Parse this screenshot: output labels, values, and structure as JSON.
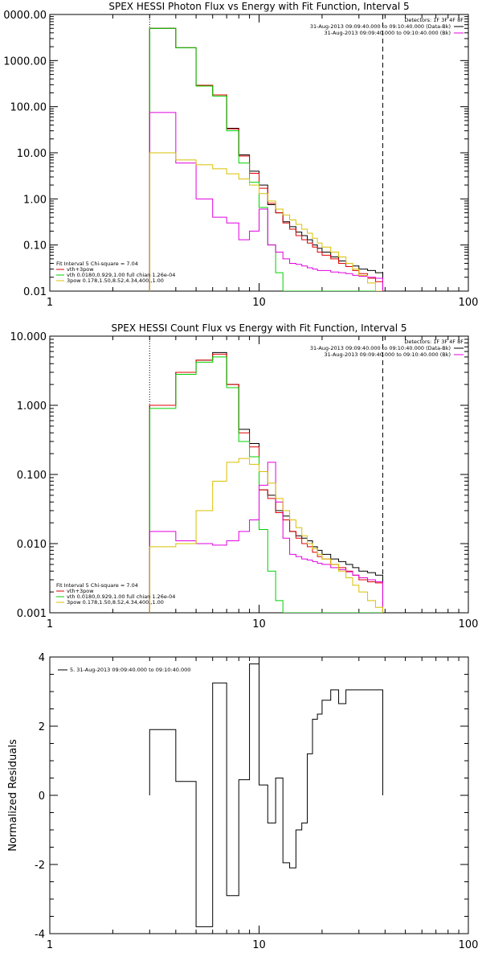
{
  "chart_data": [
    {
      "type": "line",
      "title": "SPEX HESSI Photon Flux vs Energy with Fit Function, Interval 5",
      "x_scale": "log",
      "y_scale": "log",
      "xlim": [
        1,
        100
      ],
      "ylim": [
        0.01,
        10000
      ],
      "x_ticks": [
        "1",
        "10",
        "100"
      ],
      "y_ticks": [
        "0.01",
        "0.10",
        "1.00",
        "10.00",
        "100.00",
        "1000.00",
        "0000.00"
      ],
      "x_edges": [
        3,
        4,
        5,
        6,
        7,
        8,
        9,
        10,
        11,
        12,
        13,
        14,
        15,
        16,
        17,
        18,
        19,
        20,
        22,
        24,
        26,
        28,
        30,
        33,
        36,
        39
      ],
      "vlines": [
        3,
        39
      ],
      "legend_top": {
        "header": "Detectors: 1F 3F 4F 8F",
        "entries": [
          {
            "label": "31-Aug-2013 09:09:40.000 to 09:10:40.000 (Data-Bk)",
            "color": "#000000"
          },
          {
            "label": "31-Aug-2013 09:09:40.000 to 09:10:40.000 (Bk)",
            "color": "#e000e0"
          }
        ]
      },
      "legend_bottom": {
        "header": "Fit Interval 5   Chi-square = 7.04",
        "entries": [
          {
            "label": "vth+3pow",
            "color": "#e00000"
          },
          {
            "label": "vth 0.0180,0.929,1.00  full chian 1.26e-04",
            "color": "#00d000"
          },
          {
            "label": "3pow 0.178,1.50,8.52,4.34,400.,1.00",
            "color": "#d8c000"
          }
        ]
      },
      "series": [
        {
          "color": "#000000",
          "values": [
            5000,
            1900,
            290,
            180,
            34,
            9,
            4,
            2,
            0.75,
            0.5,
            0.32,
            0.25,
            0.19,
            0.16,
            0.13,
            0.1,
            0.085,
            0.07,
            0.055,
            0.045,
            0.04,
            0.035,
            0.03,
            0.028,
            0.025
          ]
        },
        {
          "color": "#e00000",
          "values": [
            5000,
            1900,
            290,
            180,
            33,
            8.5,
            3.6,
            1.7,
            0.8,
            0.5,
            0.3,
            0.22,
            0.16,
            0.13,
            0.11,
            0.09,
            0.07,
            0.06,
            0.05,
            0.04,
            0.034,
            0.028,
            0.024,
            0.019,
            0.016
          ]
        },
        {
          "color": "#00d000",
          "values": [
            5000,
            1900,
            280,
            170,
            30,
            6,
            2.3,
            0.65,
            0.1,
            0.025,
            0.01,
            0.01,
            0.01,
            0.01,
            0.01,
            0.01,
            0.01,
            0.01,
            0.01,
            0.01,
            0.01,
            0.01,
            0.01,
            0.01,
            0.01
          ]
        },
        {
          "color": "#e000e0",
          "values": [
            75,
            6,
            1,
            0.4,
            0.3,
            0.13,
            0.2,
            0.6,
            0.1,
            0.07,
            0.05,
            0.04,
            0.038,
            0.035,
            0.032,
            0.03,
            0.028,
            0.028,
            0.026,
            0.025,
            0.024,
            0.022,
            0.021,
            0.02,
            0.019
          ]
        },
        {
          "color": "#d8c000",
          "values": [
            10,
            7,
            5.5,
            4.5,
            3.5,
            2.7,
            2,
            1.3,
            0.9,
            0.6,
            0.45,
            0.35,
            0.28,
            0.22,
            0.18,
            0.14,
            0.11,
            0.09,
            0.07,
            0.055,
            0.04,
            0.03,
            0.022,
            0.015,
            0.01
          ]
        }
      ]
    },
    {
      "type": "line",
      "title": "SPEX HESSI Count Flux vs Energy with Fit Function, Interval 5",
      "x_scale": "log",
      "y_scale": "log",
      "xlim": [
        1,
        100
      ],
      "ylim": [
        0.001,
        10
      ],
      "x_ticks": [
        "1",
        "10",
        "100"
      ],
      "y_ticks": [
        "0.001",
        "0.010",
        "0.100",
        "1.000",
        "10.000"
      ],
      "x_edges": [
        3,
        4,
        5,
        6,
        7,
        8,
        9,
        10,
        11,
        12,
        13,
        14,
        15,
        16,
        17,
        18,
        19,
        20,
        22,
        24,
        26,
        28,
        30,
        33,
        36,
        39
      ],
      "vlines": [
        3,
        39
      ],
      "legend_top": {
        "header": "Detectors: 1F 3F 4F 8F",
        "entries": [
          {
            "label": "31-Aug-2013 09:09:40.000 to 09:10:40.000 (Data-Bk)",
            "color": "#000000"
          },
          {
            "label": "31-Aug-2013 09:09:40.000 to 09:10:40.000 (Bk)",
            "color": "#e000e0"
          }
        ]
      },
      "legend_bottom": {
        "header": "Fit Interval 5   Chi-square = 7.04",
        "entries": [
          {
            "label": "vth+3pow",
            "color": "#e00000"
          },
          {
            "label": "vth 0.0180,0.929,1.00  full chian 1.26e-04",
            "color": "#00d000"
          },
          {
            "label": "3pow 0.178,1.50,8.52,4.34,400.,1.00",
            "color": "#d8c000"
          }
        ]
      },
      "series": [
        {
          "color": "#000000",
          "values": [
            1,
            3,
            4.5,
            5.8,
            2,
            0.45,
            0.28,
            0.06,
            0.05,
            0.03,
            0.025,
            0.015,
            0.013,
            0.012,
            0.011,
            0.009,
            0.008,
            0.007,
            0.006,
            0.0055,
            0.005,
            0.0045,
            0.004,
            0.0038,
            0.0035
          ]
        },
        {
          "color": "#e00000",
          "values": [
            1,
            3,
            4.5,
            5.5,
            2,
            0.4,
            0.25,
            0.06,
            0.045,
            0.028,
            0.022,
            0.015,
            0.012,
            0.01,
            0.009,
            0.0075,
            0.0065,
            0.006,
            0.005,
            0.0045,
            0.004,
            0.0035,
            0.003,
            0.0028,
            0.0027
          ]
        },
        {
          "color": "#00d000",
          "values": [
            0.9,
            2.8,
            4.2,
            5,
            1.8,
            0.3,
            0.18,
            0.016,
            0.004,
            0.0015,
            0.001,
            0.001,
            0.001,
            0.001,
            0.001,
            0.001,
            0.001,
            0.001,
            0.001,
            0.001,
            0.001,
            0.001,
            0.001,
            0.001,
            0.001
          ]
        },
        {
          "color": "#e000e0",
          "values": [
            0.015,
            0.011,
            0.01,
            0.0095,
            0.011,
            0.015,
            0.022,
            0.07,
            0.15,
            0.04,
            0.012,
            0.007,
            0.0065,
            0.006,
            0.0058,
            0.0055,
            0.0052,
            0.005,
            0.0045,
            0.0042,
            0.0039,
            0.0035,
            0.0032,
            0.003,
            0.0028
          ]
        },
        {
          "color": "#d8c000",
          "values": [
            0.009,
            0.01,
            0.03,
            0.08,
            0.15,
            0.17,
            0.14,
            0.11,
            0.075,
            0.045,
            0.03,
            0.022,
            0.017,
            0.013,
            0.01,
            0.0085,
            0.007,
            0.006,
            0.005,
            0.004,
            0.0032,
            0.0025,
            0.002,
            0.0015,
            0.0012
          ]
        }
      ]
    },
    {
      "type": "line",
      "title": "",
      "ylabel": "Normalized Residuals",
      "x_scale": "log",
      "y_scale": "linear",
      "xlim": [
        1,
        100
      ],
      "ylim": [
        -4,
        4
      ],
      "x_ticks": [
        "1",
        "10",
        "100"
      ],
      "y_ticks": [
        "-4",
        "-2",
        "0",
        "2",
        "4"
      ],
      "x_edges": [
        3,
        4,
        5,
        6,
        7,
        8,
        9,
        10,
        11,
        12,
        13,
        14,
        15,
        16,
        17,
        18,
        19,
        20,
        22,
        24,
        26,
        28,
        30,
        33,
        36,
        39
      ],
      "vlines": [],
      "legend_top": {
        "header": "",
        "entries": [
          {
            "label": "5. 31-Aug-2013 09:09:40.000 to 09:10:40.000",
            "color": "#000000"
          }
        ]
      },
      "legend_bottom": {
        "header": "",
        "entries": []
      },
      "series": [
        {
          "color": "#000000",
          "values": [
            1.9,
            0.4,
            -3.8,
            3.25,
            -2.9,
            0.45,
            3.8,
            0.3,
            -0.8,
            0.5,
            -1.95,
            -2.1,
            -1.0,
            -0.8,
            1.2,
            2.2,
            2.35,
            2.75,
            3.05,
            2.65,
            3.05,
            3.05,
            3.05,
            3.05,
            3.05
          ]
        }
      ]
    }
  ]
}
